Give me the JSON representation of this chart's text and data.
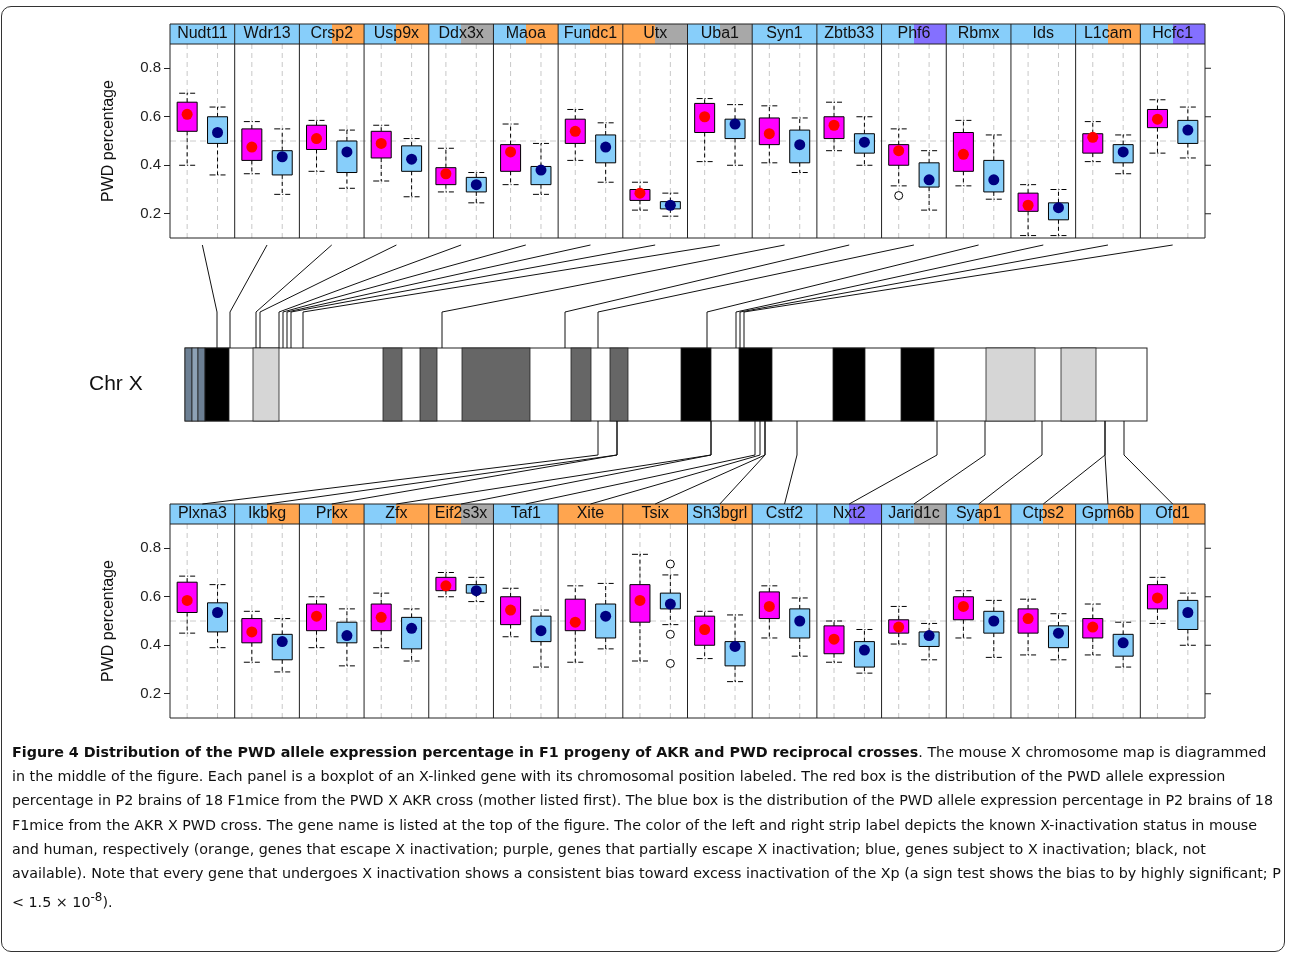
{
  "chart_data": [
    {
      "type": "box",
      "ylabel": "PWD percentage",
      "categories": [
        "Nudt11",
        "Wdr13",
        "Crsp2",
        "Usp9x",
        "Ddx3x",
        "Maoa",
        "Fundc1",
        "Utx",
        "Uba1",
        "Syn1",
        "Zbtb33",
        "Phf6",
        "Rbmx",
        "Ids",
        "L1cam",
        "Hcfc1"
      ],
      "ylim": [
        0.1,
        0.9
      ],
      "yticks": [
        0.2,
        0.4,
        0.6,
        0.8
      ],
      "grid": "x",
      "ref_lines": [
        {
          "axis": "y",
          "value": 0.5,
          "color": "#cccccc",
          "line_style": "dashed"
        }
      ],
      "series": [
        {
          "color": "#ff00ff",
          "boxes": [
            {
              "low": 0.4,
              "q1": 0.54,
              "median": 0.61,
              "q3": 0.66,
              "high": 0.697
            },
            {
              "low": 0.365,
              "q1": 0.42,
              "median": 0.475,
              "q3": 0.55,
              "high": 0.58
            },
            {
              "low": 0.375,
              "q1": 0.465,
              "median": 0.51,
              "q3": 0.565,
              "high": 0.585
            },
            {
              "low": 0.335,
              "q1": 0.43,
              "median": 0.49,
              "q3": 0.54,
              "high": 0.565
            },
            {
              "low": 0.29,
              "q1": 0.32,
              "median": 0.365,
              "q3": 0.39,
              "high": 0.47
            },
            {
              "low": 0.32,
              "q1": 0.375,
              "median": 0.455,
              "q3": 0.485,
              "high": 0.57
            },
            {
              "low": 0.42,
              "q1": 0.49,
              "median": 0.54,
              "q3": 0.59,
              "high": 0.63
            },
            {
              "low": 0.215,
              "q1": 0.255,
              "median": 0.285,
              "q3": 0.3,
              "high": 0.33
            },
            {
              "low": 0.415,
              "q1": 0.535,
              "median": 0.6,
              "q3": 0.655,
              "high": 0.675
            },
            {
              "low": 0.41,
              "q1": 0.485,
              "median": 0.53,
              "q3": 0.595,
              "high": 0.645
            },
            {
              "low": 0.46,
              "q1": 0.51,
              "median": 0.565,
              "q3": 0.6,
              "high": 0.66
            },
            {
              "low": 0.315,
              "q1": 0.4,
              "median": 0.46,
              "q3": 0.485,
              "high": 0.55,
              "outliers": [
                0.275
              ]
            },
            {
              "low": 0.315,
              "q1": 0.375,
              "median": 0.445,
              "q3": 0.535,
              "high": 0.585
            },
            {
              "low": 0.11,
              "q1": 0.21,
              "median": 0.235,
              "q3": 0.285,
              "high": 0.32
            },
            {
              "low": 0.415,
              "q1": 0.45,
              "median": 0.515,
              "q3": 0.53,
              "high": 0.58
            },
            {
              "low": 0.45,
              "q1": 0.555,
              "median": 0.59,
              "q3": 0.63,
              "high": 0.67
            }
          ]
        },
        {
          "color": "#87cefa",
          "boxes": [
            {
              "low": 0.36,
              "q1": 0.49,
              "median": 0.535,
              "q3": 0.6,
              "high": 0.64
            },
            {
              "low": 0.28,
              "q1": 0.36,
              "median": 0.435,
              "q3": 0.46,
              "high": 0.55
            },
            {
              "low": 0.305,
              "q1": 0.37,
              "median": 0.455,
              "q3": 0.5,
              "high": 0.545
            },
            {
              "low": 0.27,
              "q1": 0.375,
              "median": 0.425,
              "q3": 0.48,
              "high": 0.51
            },
            {
              "low": 0.245,
              "q1": 0.29,
              "median": 0.32,
              "q3": 0.35,
              "high": 0.37
            },
            {
              "low": 0.28,
              "q1": 0.32,
              "median": 0.38,
              "q3": 0.395,
              "high": 0.49
            },
            {
              "low": 0.33,
              "q1": 0.41,
              "median": 0.475,
              "q3": 0.525,
              "high": 0.575
            },
            {
              "low": 0.19,
              "q1": 0.22,
              "median": 0.235,
              "q3": 0.25,
              "high": 0.285
            },
            {
              "low": 0.4,
              "q1": 0.51,
              "median": 0.57,
              "q3": 0.59,
              "high": 0.65
            },
            {
              "low": 0.37,
              "q1": 0.41,
              "median": 0.485,
              "q3": 0.545,
              "high": 0.595
            },
            {
              "low": 0.4,
              "q1": 0.45,
              "median": 0.495,
              "q3": 0.53,
              "high": 0.6
            },
            {
              "low": 0.215,
              "q1": 0.31,
              "median": 0.34,
              "q3": 0.41,
              "high": 0.46
            },
            {
              "low": 0.26,
              "q1": 0.29,
              "median": 0.34,
              "q3": 0.42,
              "high": 0.525
            },
            {
              "low": 0.11,
              "q1": 0.175,
              "median": 0.225,
              "q3": 0.245,
              "high": 0.3
            },
            {
              "low": 0.365,
              "q1": 0.41,
              "median": 0.455,
              "q3": 0.485,
              "high": 0.525
            },
            {
              "low": 0.43,
              "q1": 0.49,
              "median": 0.545,
              "q3": 0.585,
              "high": 0.64
            }
          ]
        }
      ],
      "annotations": [
        "Chr X"
      ]
    },
    {
      "type": "box",
      "ylabel": "PWD percentage",
      "categories": [
        "Plxna3",
        "Ikbkg",
        "Prkx",
        "Zfx",
        "Eif2s3x",
        "Taf1",
        "Xite",
        "Tsix",
        "Sh3bgrl",
        "Cstf2",
        "Nxt2",
        "Jarid1c",
        "Syap1",
        "Ctps2",
        "Gpm6b",
        "Ofd1"
      ],
      "ylim": [
        0.1,
        0.9
      ],
      "yticks": [
        0.2,
        0.4,
        0.6,
        0.8
      ],
      "grid": "x",
      "ref_lines": [
        {
          "axis": "y",
          "value": 0.5,
          "color": "#cccccc",
          "line_style": "dashed"
        }
      ],
      "series": [
        {
          "color": "#ff00ff",
          "boxes": [
            {
              "low": 0.45,
              "q1": 0.535,
              "median": 0.585,
              "q3": 0.66,
              "high": 0.685
            },
            {
              "low": 0.33,
              "q1": 0.41,
              "median": 0.455,
              "q3": 0.51,
              "high": 0.54
            },
            {
              "low": 0.39,
              "q1": 0.46,
              "median": 0.52,
              "q3": 0.57,
              "high": 0.6
            },
            {
              "low": 0.39,
              "q1": 0.46,
              "median": 0.515,
              "q3": 0.57,
              "high": 0.615
            },
            {
              "low": 0.6,
              "q1": 0.625,
              "median": 0.645,
              "q3": 0.68,
              "high": 0.7
            },
            {
              "low": 0.435,
              "q1": 0.485,
              "median": 0.545,
              "q3": 0.6,
              "high": 0.635
            },
            {
              "low": 0.33,
              "q1": 0.46,
              "median": 0.495,
              "q3": 0.59,
              "high": 0.645
            },
            {
              "low": 0.335,
              "q1": 0.495,
              "median": 0.585,
              "q3": 0.65,
              "high": 0.775
            },
            {
              "low": 0.345,
              "q1": 0.4,
              "median": 0.465,
              "q3": 0.52,
              "high": 0.54
            },
            {
              "low": 0.43,
              "q1": 0.51,
              "median": 0.56,
              "q3": 0.62,
              "high": 0.645
            },
            {
              "low": 0.33,
              "q1": 0.365,
              "median": 0.425,
              "q3": 0.48,
              "high": 0.5
            },
            {
              "low": 0.405,
              "q1": 0.45,
              "median": 0.475,
              "q3": 0.505,
              "high": 0.56
            },
            {
              "low": 0.43,
              "q1": 0.505,
              "median": 0.56,
              "q3": 0.6,
              "high": 0.625
            },
            {
              "low": 0.36,
              "q1": 0.45,
              "median": 0.51,
              "q3": 0.55,
              "high": 0.59
            },
            {
              "low": 0.36,
              "q1": 0.43,
              "median": 0.475,
              "q3": 0.51,
              "high": 0.57
            },
            {
              "low": 0.49,
              "q1": 0.55,
              "median": 0.595,
              "q3": 0.65,
              "high": 0.68
            }
          ]
        },
        {
          "color": "#87cefa",
          "boxes": [
            {
              "low": 0.39,
              "q1": 0.455,
              "median": 0.535,
              "q3": 0.575,
              "high": 0.65
            },
            {
              "low": 0.29,
              "q1": 0.34,
              "median": 0.415,
              "q3": 0.445,
              "high": 0.51
            },
            {
              "low": 0.315,
              "q1": 0.41,
              "median": 0.44,
              "q3": 0.495,
              "high": 0.55
            },
            {
              "low": 0.335,
              "q1": 0.385,
              "median": 0.47,
              "q3": 0.515,
              "high": 0.55
            },
            {
              "low": 0.58,
              "q1": 0.615,
              "median": 0.625,
              "q3": 0.65,
              "high": 0.68
            },
            {
              "low": 0.31,
              "q1": 0.415,
              "median": 0.46,
              "q3": 0.52,
              "high": 0.545
            },
            {
              "low": 0.385,
              "q1": 0.43,
              "median": 0.52,
              "q3": 0.57,
              "high": 0.655
            },
            {
              "low": 0.485,
              "q1": 0.55,
              "median": 0.57,
              "q3": 0.615,
              "high": 0.69,
              "outliers": [
                0.735,
                0.445,
                0.325
              ]
            },
            {
              "low": 0.25,
              "q1": 0.315,
              "median": 0.395,
              "q3": 0.415,
              "high": 0.525
            },
            {
              "low": 0.355,
              "q1": 0.43,
              "median": 0.5,
              "q3": 0.55,
              "high": 0.595
            },
            {
              "low": 0.285,
              "q1": 0.31,
              "median": 0.38,
              "q3": 0.415,
              "high": 0.465
            },
            {
              "low": 0.34,
              "q1": 0.395,
              "median": 0.44,
              "q3": 0.455,
              "high": 0.49
            },
            {
              "low": 0.35,
              "q1": 0.45,
              "median": 0.5,
              "q3": 0.54,
              "high": 0.585
            },
            {
              "low": 0.34,
              "q1": 0.39,
              "median": 0.45,
              "q3": 0.48,
              "high": 0.53
            },
            {
              "low": 0.31,
              "q1": 0.355,
              "median": 0.41,
              "q3": 0.445,
              "high": 0.495
            },
            {
              "low": 0.4,
              "q1": 0.465,
              "median": 0.535,
              "q3": 0.585,
              "high": 0.615
            }
          ]
        }
      ],
      "annotations": [
        "Figure 4 Distribution of the PWD allele expression percentage in F1 progeny of AKR and PWD reciprocal crosses",
        ". The mouse X chromosome map is diagrammed in the middle of the figure. Each panel is a boxplot of an X-linked gene with its chromosomal position labeled. The red box is the distribution of the PWD allele expression percentage in P2 brains of 18 F1mice from the PWD X AKR cross (mother listed first). The blue box is the distribution of the PWD allele expression percentage in P2 brains of 18 F1mice from the AKR X PWD cross. The gene name is listed at the top of the figure. The color of the left and right strip label depicts the known X-inactivation status in mouse and human, respectively (orange, genes that escape X inactivation; purple, genes that partially escape X inactivation; blue, genes subject to X inactivation; black, not available). Note that every gene that undergoes X inactivation shows a consistent bias toward excess inactivation of the Xp (a sign test shows the bias to by highly significant; P < 1.5 × 10$^{-8}$)."
      ]
    }
  ]
}
